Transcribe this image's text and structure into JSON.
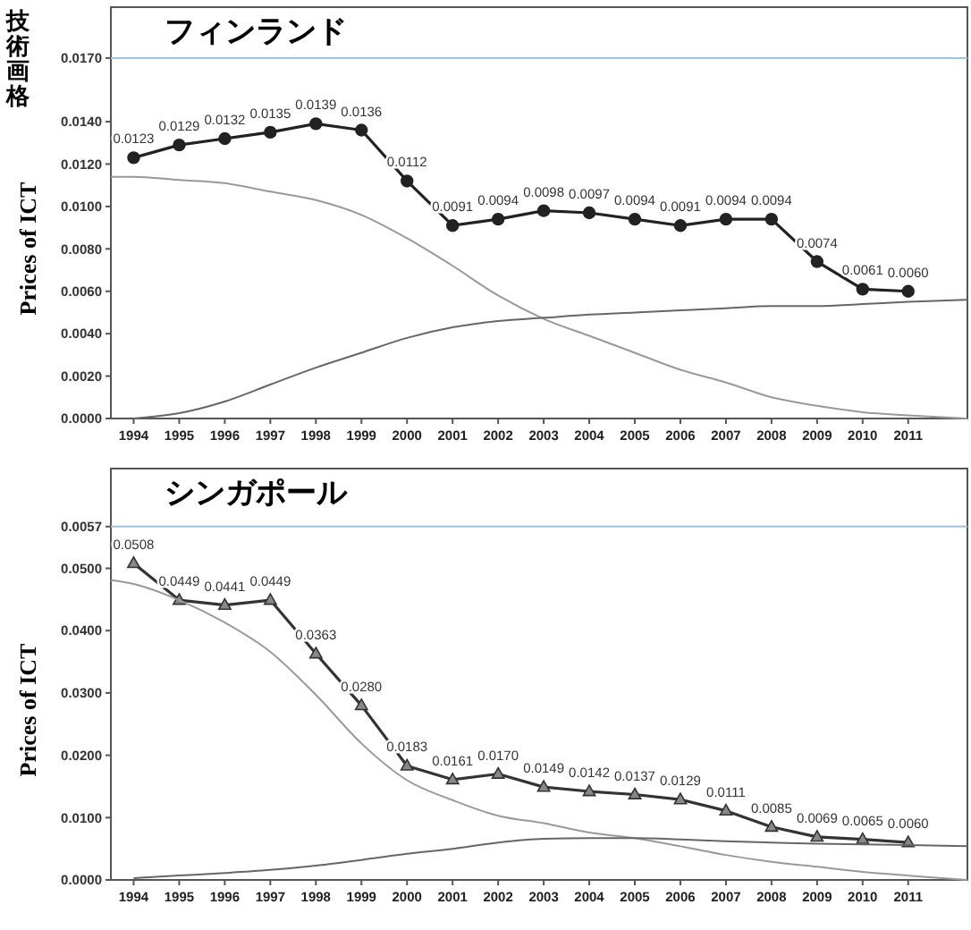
{
  "chart_data": [
    {
      "type": "line",
      "title": "フィンランド",
      "ylabel": "Prices of ICT",
      "annotations": [
        "技術画格"
      ],
      "xlim": [
        1993.5,
        2012.3
      ],
      "xticks": [
        1994,
        1995,
        1996,
        1997,
        1998,
        1999,
        2000,
        2001,
        2002,
        2003,
        2004,
        2005,
        2006,
        2007,
        2008,
        2009,
        2010,
        2011
      ],
      "ylim": [
        0,
        0.0194
      ],
      "yticks": [
        "0.0000",
        "0.0020",
        "0.0040",
        "0.0060",
        "0.0080",
        "0.0100",
        "0.0120",
        "0.0140",
        "0.0170"
      ],
      "ref_lines": [
        {
          "axis": "y",
          "value": 0.017,
          "color": "#9dc3e6"
        }
      ],
      "series": [
        {
          "color": "#222222",
          "marker": "circle",
          "x": [
            1994,
            1995,
            1996,
            1997,
            1998,
            1999,
            2000,
            2001,
            2002,
            2003,
            2004,
            2005,
            2006,
            2007,
            2008,
            2009,
            2010,
            2011
          ],
          "values": [
            0.0123,
            0.0129,
            0.0132,
            0.0135,
            0.0139,
            0.0136,
            0.0112,
            0.0091,
            0.0094,
            0.0098,
            0.0097,
            0.0094,
            0.0091,
            0.0094,
            0.0094,
            0.0074,
            0.0061,
            0.006
          ],
          "value_labels": [
            "0.0123",
            "0.0129",
            "0.0132",
            "0.0135",
            "0.0139",
            "0.0136",
            "0.0112",
            "0.0091",
            "0.0094",
            "0.0098",
            "0.0097",
            "0.0094",
            "0.0091",
            "0.0094",
            "0.0094",
            "0.0074",
            "0.0061",
            "0.0060"
          ]
        },
        {
          "color": "#999999",
          "marker": "none",
          "x": [
            1993.5,
            1994,
            1995,
            1996,
            1997,
            1998,
            1999,
            2000,
            2001,
            2002,
            2003,
            2004,
            2005,
            2006,
            2007,
            2008,
            2009,
            2010,
            2011,
            2012.3
          ],
          "values": [
            0.0114,
            0.0114,
            0.01125,
            0.0111,
            0.0107,
            0.0103,
            0.0096,
            0.0085,
            0.0072,
            0.0058,
            0.0047,
            0.0039,
            0.0031,
            0.0023,
            0.0017,
            0.001,
            0.0006,
            0.0003,
            0.00015,
            0
          ]
        },
        {
          "color": "#666666",
          "marker": "none",
          "x": [
            1994,
            1995,
            1996,
            1997,
            1998,
            1999,
            2000,
            2001,
            2002,
            2003,
            2004,
            2005,
            2006,
            2007,
            2008,
            2009,
            2010,
            2011,
            2012.3
          ],
          "values": [
            0,
            0.00025,
            0.0008,
            0.0016,
            0.0024,
            0.0031,
            0.0038,
            0.0043,
            0.0046,
            0.00475,
            0.0049,
            0.005,
            0.0051,
            0.0052,
            0.0053,
            0.0053,
            0.0054,
            0.0055,
            0.0056
          ]
        }
      ]
    },
    {
      "type": "line",
      "title": "シンガポール",
      "ylabel": "Prices of ICT",
      "annotations": [
        {
          "text": "0.0057",
          "x": 1993.5,
          "y": 0.0567
        }
      ],
      "xlim": [
        1993.5,
        2012.3
      ],
      "xticks": [
        1994,
        1995,
        1996,
        1997,
        1998,
        1999,
        2000,
        2001,
        2002,
        2003,
        2004,
        2005,
        2006,
        2007,
        2008,
        2009,
        2010,
        2011
      ],
      "ylim": [
        0,
        0.066
      ],
      "yticks": [
        "0.0000",
        "0.0100",
        "0.0200",
        "0.0300",
        "0.0400",
        "0.0500"
      ],
      "ref_lines": [
        {
          "axis": "y",
          "value": 0.0567,
          "color": "#9dc3e6"
        }
      ],
      "series": [
        {
          "color": "#333333",
          "marker": "triangle",
          "x": [
            1994,
            1995,
            1996,
            1997,
            1998,
            1999,
            2000,
            2001,
            2002,
            2003,
            2004,
            2005,
            2006,
            2007,
            2008,
            2009,
            2010,
            2011
          ],
          "values": [
            0.0508,
            0.0449,
            0.0441,
            0.0449,
            0.0363,
            0.028,
            0.0183,
            0.0161,
            0.017,
            0.0149,
            0.0142,
            0.0137,
            0.0129,
            0.0111,
            0.0085,
            0.0069,
            0.0065,
            0.006
          ],
          "value_labels": [
            "0.0508",
            "0.0449",
            "0.0441",
            "0.0449",
            "0.0363",
            "0.0280",
            "0.0183",
            "0.0161",
            "0.0170",
            "0.0149",
            "0.0142",
            "0.0137",
            "0.0129",
            "0.0111",
            "0.0085",
            "0.0069",
            "0.0065",
            "0.0060"
          ]
        },
        {
          "color": "#999999",
          "marker": "none",
          "x": [
            1993.5,
            1994,
            1995,
            1996,
            1997,
            1998,
            1999,
            2000,
            2001,
            2002,
            2003,
            2004,
            2005,
            2006,
            2007,
            2008,
            2009,
            2010,
            2011,
            2012.3
          ],
          "values": [
            0.0481,
            0.0475,
            0.0449,
            0.0413,
            0.0366,
            0.0297,
            0.0219,
            0.016,
            0.0128,
            0.0103,
            0.0091,
            0.0076,
            0.0067,
            0.0054,
            0.004,
            0.0029,
            0.0021,
            0.0013,
            0.0007,
            0
          ]
        },
        {
          "color": "#666666",
          "marker": "none",
          "x": [
            1994,
            1995,
            1996,
            1997,
            1998,
            1999,
            2000,
            2001,
            2002,
            2003,
            2004,
            2005,
            2006,
            2007,
            2008,
            2009,
            2010,
            2011,
            2012.3
          ],
          "values": [
            0.0003,
            0.0007,
            0.0011,
            0.0016,
            0.0023,
            0.0032,
            0.0042,
            0.005,
            0.006,
            0.0066,
            0.0067,
            0.0067,
            0.0065,
            0.0062,
            0.006,
            0.0058,
            0.0057,
            0.0056,
            0.0054
          ]
        }
      ]
    }
  ]
}
